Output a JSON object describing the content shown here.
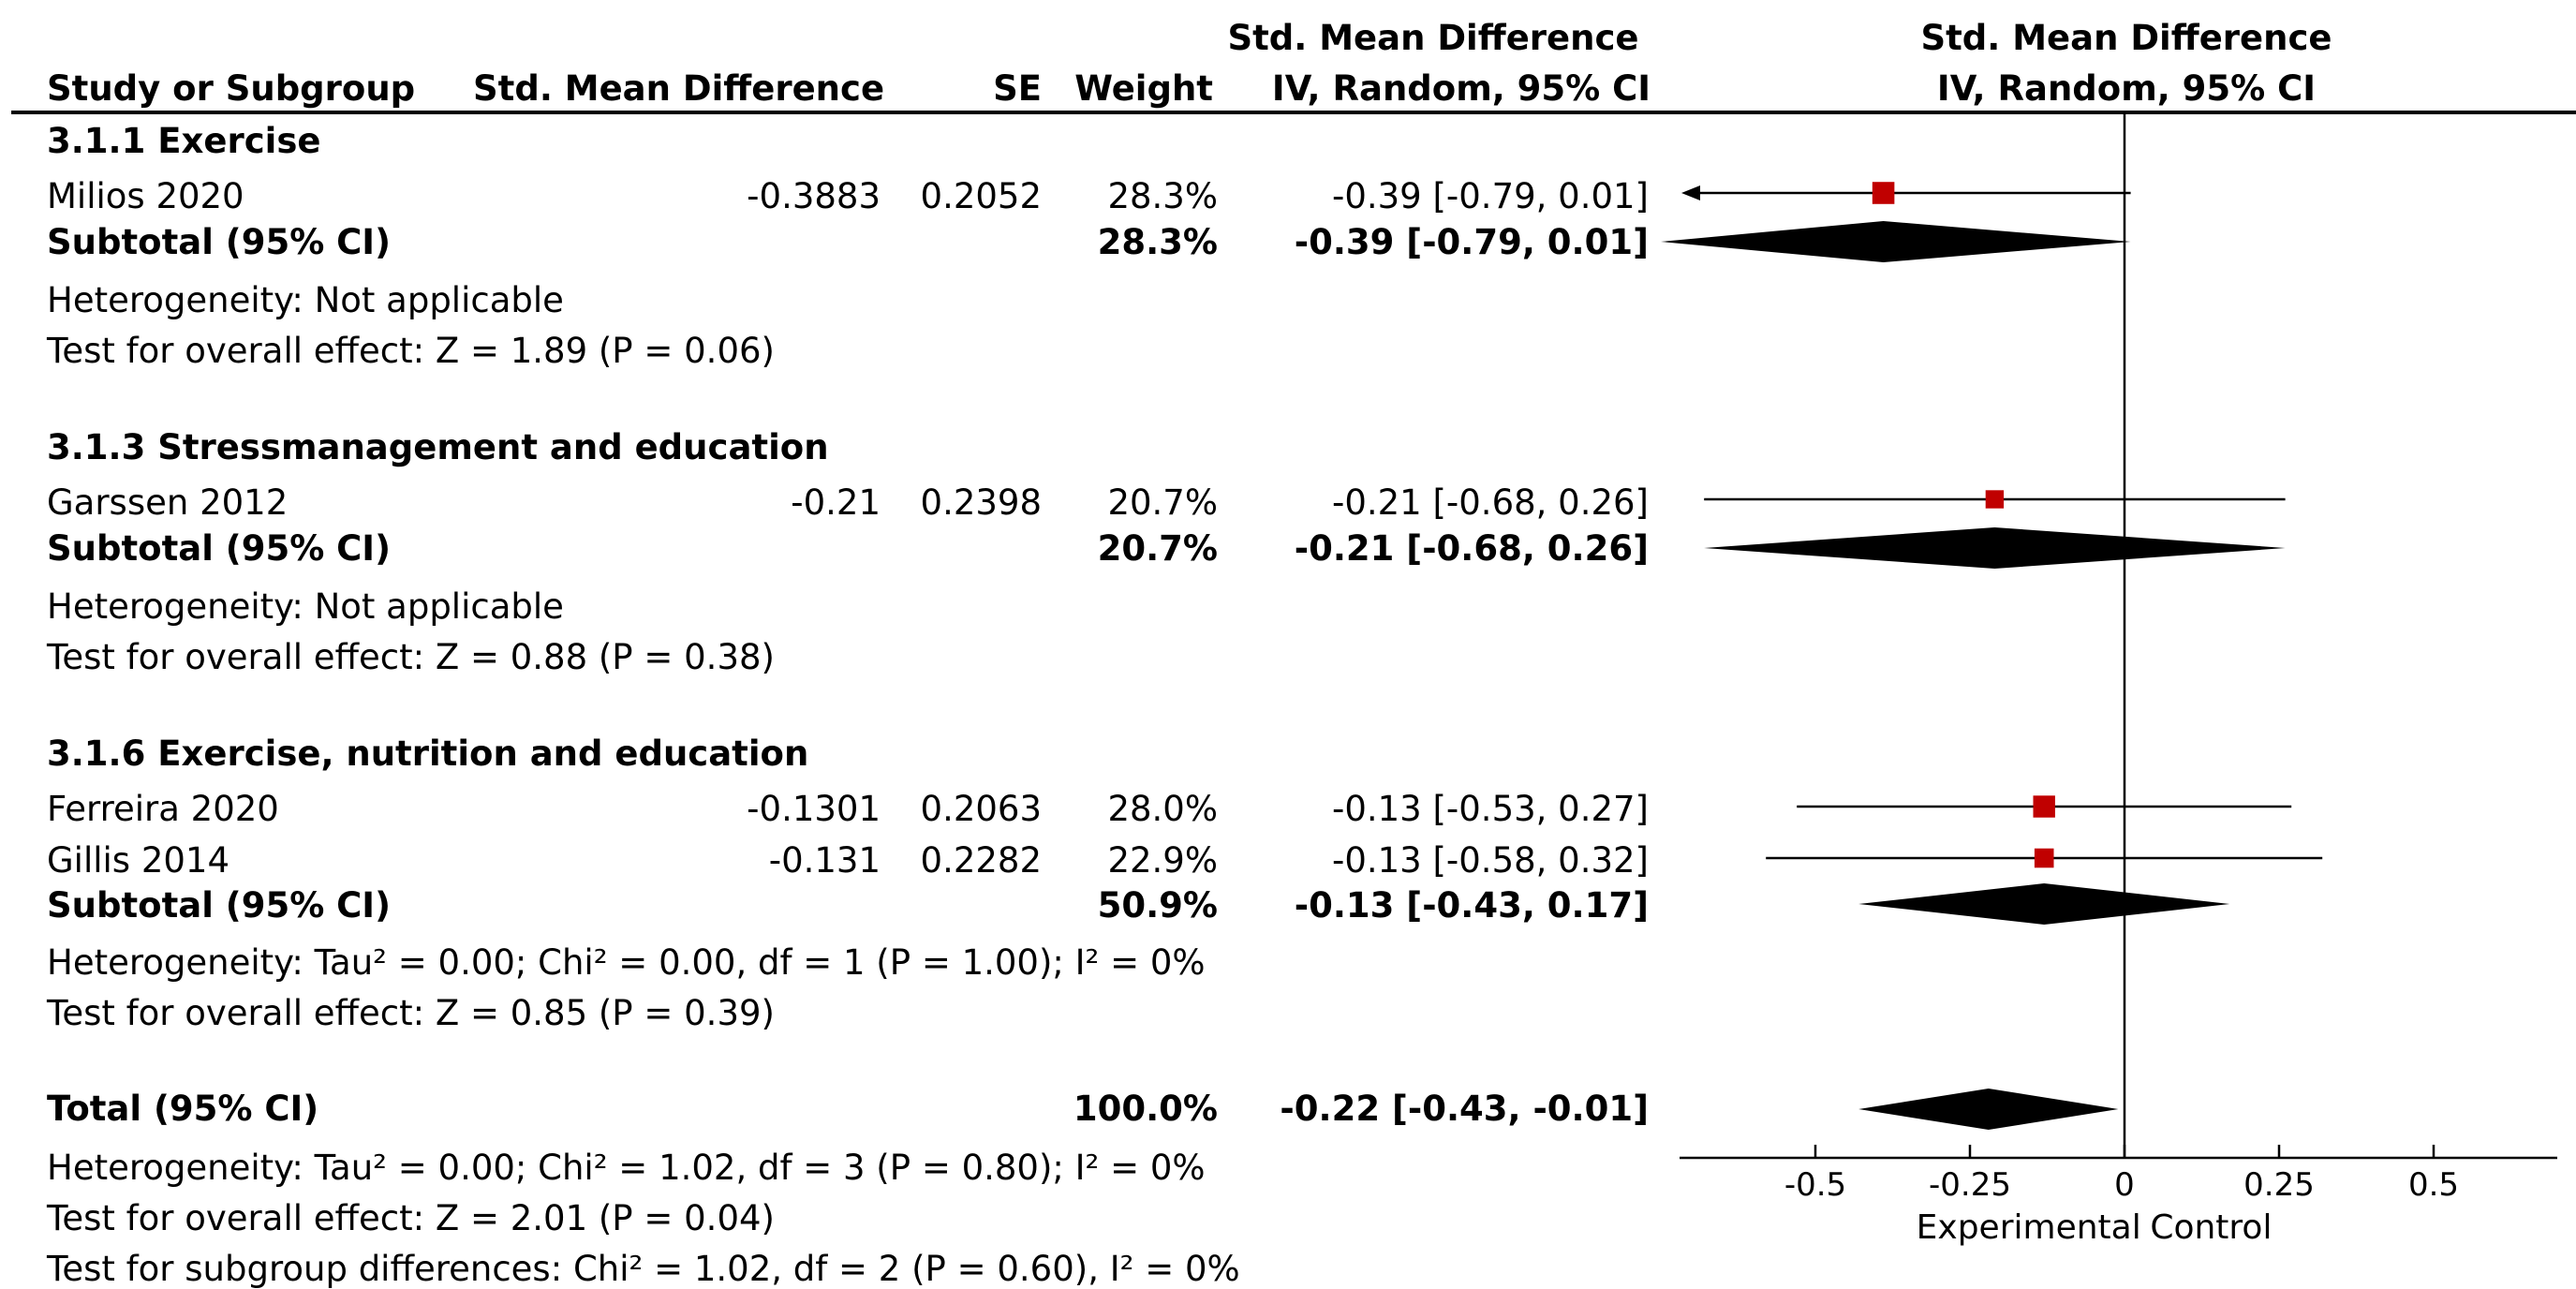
{
  "header": {
    "col_study": "Study or Subgroup",
    "col_smd": "Std. Mean Difference",
    "col_se": "SE",
    "col_weight": "Weight",
    "col_ci_top": "Std. Mean Difference",
    "col_ci_bottom": "IV, Random, 95% CI",
    "plot_top": "Std. Mean Difference",
    "plot_bottom": "IV, Random, 95% CI"
  },
  "groups": [
    {
      "title": "3.1.1 Exercise",
      "studies": [
        {
          "name": "Milios 2020",
          "smd": "-0.3883",
          "se": "0.2052",
          "weight": "28.3%",
          "ci": "-0.39 [-0.79, 0.01]"
        }
      ],
      "subtotal": {
        "label": "Subtotal (95% CI)",
        "weight": "28.3%",
        "ci": "-0.39 [-0.79, 0.01]"
      },
      "heterogeneity": "Heterogeneity: Not applicable",
      "overall": "Test for overall effect: Z = 1.89 (P = 0.06)"
    },
    {
      "title": "3.1.3 Stressmanagement and education",
      "studies": [
        {
          "name": "Garssen 2012",
          "smd": "-0.21",
          "se": "0.2398",
          "weight": "20.7%",
          "ci": "-0.21 [-0.68, 0.26]"
        }
      ],
      "subtotal": {
        "label": "Subtotal (95% CI)",
        "weight": "20.7%",
        "ci": "-0.21 [-0.68, 0.26]"
      },
      "heterogeneity": "Heterogeneity: Not applicable",
      "overall": "Test for overall effect: Z = 0.88 (P = 0.38)"
    },
    {
      "title": "3.1.6 Exercise, nutrition and education",
      "studies": [
        {
          "name": "Ferreira 2020",
          "smd": "-0.1301",
          "se": "0.2063",
          "weight": "28.0%",
          "ci": "-0.13 [-0.53, 0.27]"
        },
        {
          "name": "Gillis 2014",
          "smd": "-0.131",
          "se": "0.2282",
          "weight": "22.9%",
          "ci": "-0.13 [-0.58, 0.32]"
        }
      ],
      "subtotal": {
        "label": "Subtotal (95% CI)",
        "weight": "50.9%",
        "ci": "-0.13 [-0.43, 0.17]"
      },
      "heterogeneity": "Heterogeneity: Tau² = 0.00; Chi² = 0.00, df = 1 (P = 1.00); I² = 0%",
      "overall": "Test for overall effect: Z = 0.85 (P = 0.39)"
    }
  ],
  "total": {
    "label": "Total (95% CI)",
    "weight": "100.0%",
    "ci": "-0.22 [-0.43, -0.01]",
    "heterogeneity": "Heterogeneity: Tau² = 0.00; Chi² = 1.02, df = 3 (P = 0.80); I² = 0%",
    "overall": "Test for overall effect: Z = 2.01 (P = 0.04)",
    "subgroup": "Test for subgroup differences: Chi² = 1.02, df = 2 (P = 0.60), I² = 0%"
  },
  "chart_data": {
    "type": "forest",
    "xlim": [
      -0.75,
      0.75
    ],
    "ticks": [
      -0.5,
      -0.25,
      0,
      0.25,
      0.5
    ],
    "tick_labels": [
      "-0.5",
      "-0.25",
      "0",
      "0.25",
      "0.5"
    ],
    "favours_left": "Experimental",
    "favours_right": "Control",
    "marker_color": "#c00000",
    "studies": [
      {
        "name": "Milios 2020",
        "est": -0.39,
        "lo": -0.79,
        "hi": 0.01,
        "weight": 28.3,
        "clipped_left": true
      },
      {
        "name": "Garssen 2012",
        "est": -0.21,
        "lo": -0.68,
        "hi": 0.26,
        "weight": 20.7
      },
      {
        "name": "Ferreira 2020",
        "est": -0.13,
        "lo": -0.53,
        "hi": 0.27,
        "weight": 28.0
      },
      {
        "name": "Gillis 2014",
        "est": -0.13,
        "lo": -0.58,
        "hi": 0.32,
        "weight": 22.9
      }
    ],
    "subtotals": [
      {
        "name": "3.1.1 Exercise",
        "est": -0.39,
        "lo": -0.79,
        "hi": 0.01
      },
      {
        "name": "3.1.3 Stressmanagement and education",
        "est": -0.21,
        "lo": -0.68,
        "hi": 0.26
      },
      {
        "name": "3.1.6 Exercise, nutrition and education",
        "est": -0.13,
        "lo": -0.43,
        "hi": 0.17
      }
    ],
    "total": {
      "est": -0.22,
      "lo": -0.43,
      "hi": -0.01
    }
  }
}
